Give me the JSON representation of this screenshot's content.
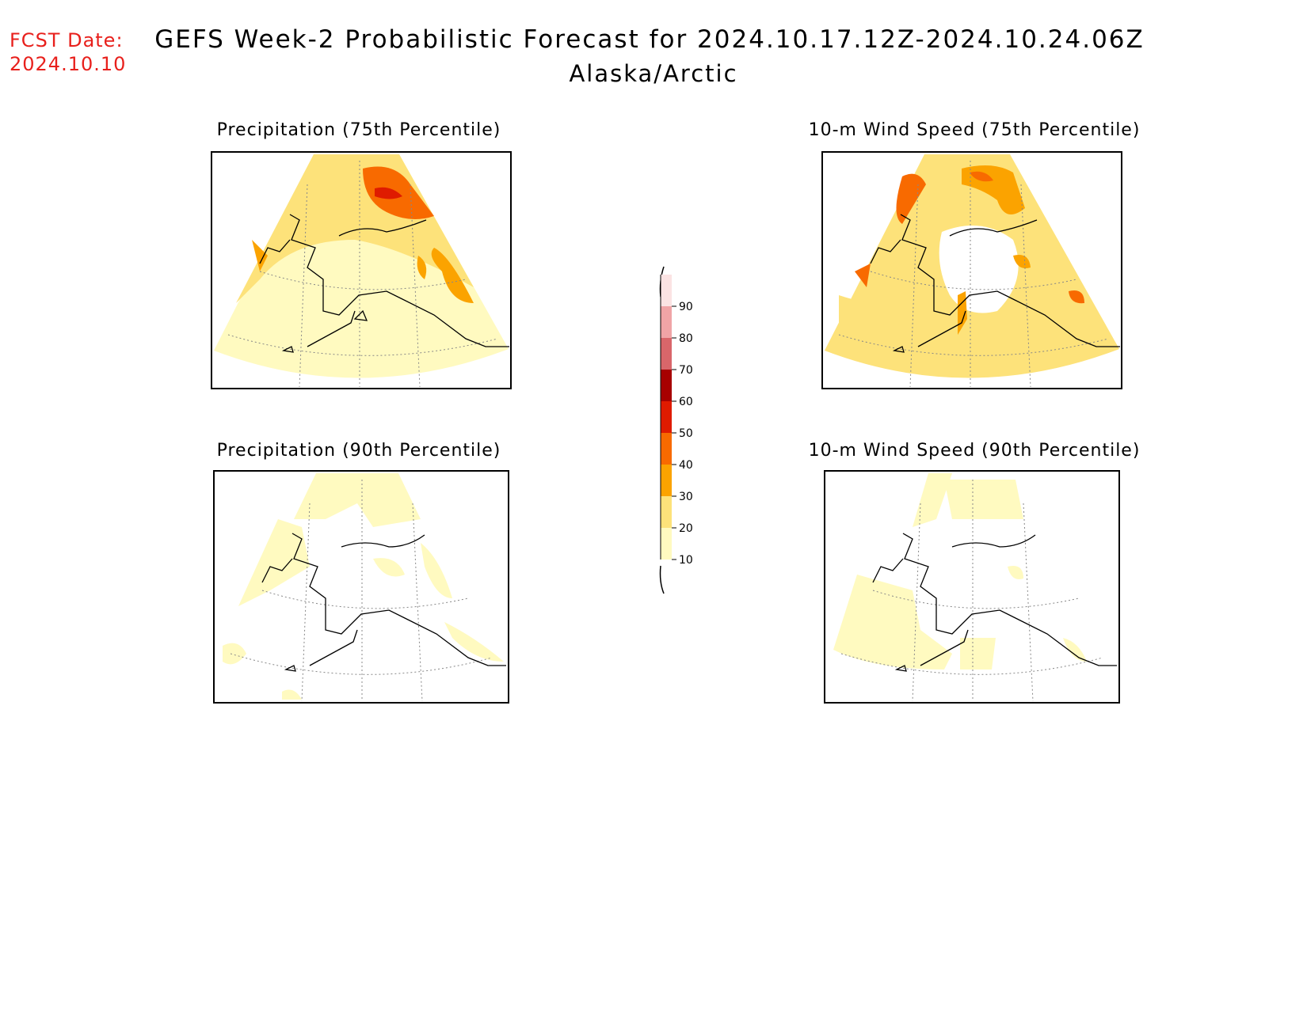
{
  "header": {
    "fcst_label": "FCST Date:",
    "fcst_date": "2024.10.10",
    "title": "GEFS Week-2 Probabilistic Forecast for 2024.10.17.12Z-2024.10.24.06Z",
    "region": "Alaska/Arctic"
  },
  "panels": {
    "precip75": {
      "title": "Precipitation (75th Percentile)"
    },
    "wind75": {
      "title": "10-m Wind Speed (75th Percentile)"
    },
    "precip90": {
      "title": "Precipitation (90th Percentile)"
    },
    "wind90": {
      "title": "10-m Wind Speed (90th Percentile)"
    }
  },
  "legend": {
    "levels": [
      {
        "value": "10",
        "color": "#fffac0"
      },
      {
        "value": "20",
        "color": "#fde27a"
      },
      {
        "value": "30",
        "color": "#fba300"
      },
      {
        "value": "40",
        "color": "#f86a00"
      },
      {
        "value": "50",
        "color": "#df1b00"
      },
      {
        "value": "60",
        "color": "#a70000"
      },
      {
        "value": "70",
        "color": "#d9666a"
      },
      {
        "value": "80",
        "color": "#f0a4a6"
      },
      {
        "value": "90",
        "color": "#fbe3e3"
      }
    ]
  }
}
